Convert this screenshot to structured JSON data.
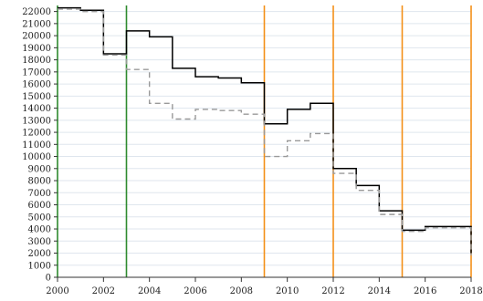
{
  "chart_data": {
    "type": "line",
    "step": true,
    "title": "",
    "xlabel": "",
    "ylabel": "",
    "xlim": [
      2000,
      2018
    ],
    "ylim": [
      0,
      22500
    ],
    "x_ticks": [
      2000,
      2002,
      2004,
      2006,
      2008,
      2010,
      2012,
      2014,
      2016,
      2018
    ],
    "y_ticks": [
      0,
      1000,
      2000,
      3000,
      4000,
      5000,
      6000,
      7000,
      8000,
      9000,
      10000,
      11000,
      12000,
      13000,
      14000,
      15000,
      16000,
      17000,
      18000,
      19000,
      20000,
      21000,
      22000
    ],
    "grid": "horizontal",
    "colors": {
      "green": "#2e8b2e",
      "orange": "#f39019",
      "solid": "#000000",
      "dashed": "#999999"
    },
    "vlines": [
      {
        "x": 2000,
        "color": "#2e8b2e"
      },
      {
        "x": 2003,
        "color": "#2e8b2e"
      },
      {
        "x": 2009,
        "color": "#f39019"
      },
      {
        "x": 2012,
        "color": "#f39019"
      },
      {
        "x": 2015,
        "color": "#f39019"
      },
      {
        "x": 2018,
        "color": "#f39019"
      }
    ],
    "series": [
      {
        "style": "solid",
        "color": "#000000",
        "x": [
          2000,
          2001,
          2002,
          2003,
          2004,
          2005,
          2006,
          2007,
          2008,
          2009,
          2010,
          2011,
          2012,
          2013,
          2014,
          2015,
          2016,
          2017,
          2018
        ],
        "values": [
          22300,
          22100,
          18500,
          20400,
          19900,
          17300,
          16600,
          16500,
          16100,
          12700,
          13900,
          14400,
          9000,
          7600,
          5500,
          3900,
          4200,
          4200,
          2000
        ]
      },
      {
        "style": "dashed",
        "color": "#999999",
        "x": [
          2000,
          2001,
          2002,
          2003,
          2004,
          2005,
          2006,
          2007,
          2008,
          2009,
          2010,
          2011,
          2012,
          2013,
          2014,
          2015,
          2016,
          2017,
          2018
        ],
        "values": [
          22200,
          22000,
          18400,
          17200,
          14400,
          13100,
          13900,
          13800,
          13500,
          10000,
          11300,
          11900,
          8600,
          7200,
          5200,
          3800,
          4100,
          4100,
          1800
        ]
      }
    ]
  }
}
